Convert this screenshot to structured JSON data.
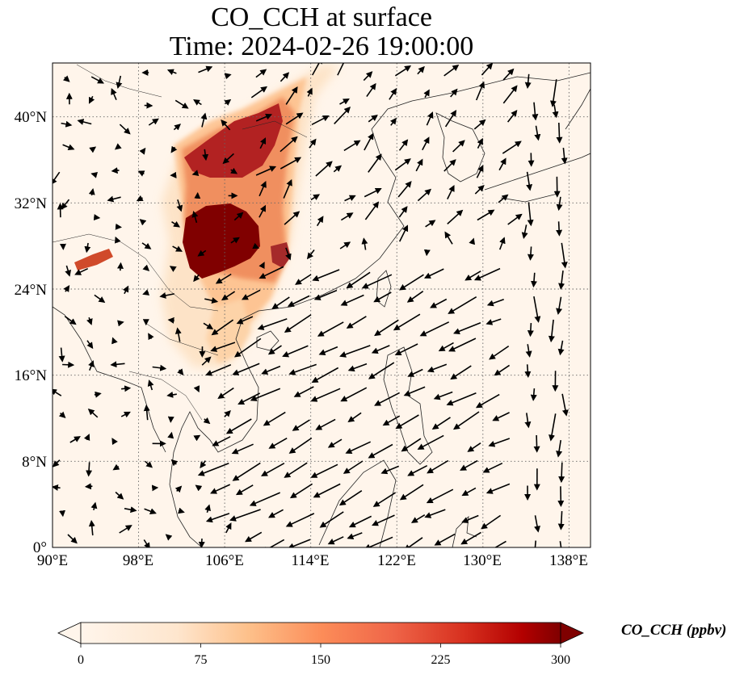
{
  "title": {
    "line1": "CO_CCH at surface",
    "line2": "Time: 2024-02-26 19:00:00"
  },
  "map": {
    "variable": "CO_CCH",
    "level": "surface",
    "lon_range": [
      90,
      140
    ],
    "lat_range": [
      0,
      45
    ],
    "lon_ticks": [
      "90°E",
      "98°E",
      "106°E",
      "114°E",
      "122°E",
      "130°E",
      "138°E"
    ],
    "lon_tick_values": [
      90,
      98,
      106,
      114,
      122,
      130,
      138
    ],
    "lat_ticks": [
      "0°",
      "8°N",
      "16°N",
      "24°N",
      "32°N",
      "40°N"
    ],
    "lat_tick_values": [
      0,
      8,
      16,
      24,
      32,
      40
    ],
    "gridlines": "dotted",
    "overlay": "wind vectors (arrows)",
    "plume_colors": [
      "#fff5eb",
      "#fdd9b4",
      "#fdae6b",
      "#f16913",
      "#d94801",
      "#a63603",
      "#7f0000"
    ]
  },
  "colorbar": {
    "label": "CO_CCH (ppbv)",
    "ticks": [
      "0",
      "75",
      "150",
      "225",
      "300"
    ],
    "range": [
      0,
      300
    ],
    "extend": "both",
    "cmap": "OrRd"
  }
}
